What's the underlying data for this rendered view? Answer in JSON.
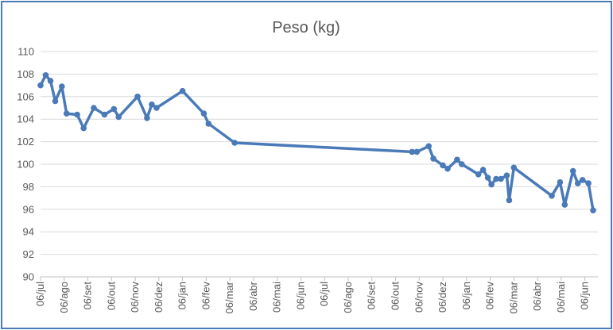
{
  "chart_data": {
    "type": "line",
    "title": "Peso (kg)",
    "xlabel": "",
    "ylabel": "",
    "ylim": [
      90,
      110
    ],
    "y_ticks": [
      90,
      92,
      94,
      96,
      98,
      100,
      102,
      104,
      106,
      108,
      110
    ],
    "x_ticks": [
      "06/jul",
      "06/ago",
      "06/set",
      "06/out",
      "06/nov",
      "06/dez",
      "06/jan",
      "06/fev",
      "06/mar",
      "06/abr",
      "06/mai",
      "06/jun",
      "06/jul",
      "06/ago",
      "06/set",
      "06/out",
      "06/nov",
      "06/dez",
      "06/jan",
      "06/fev",
      "06/mar",
      "06/abr",
      "06/mai",
      "06/jun"
    ],
    "x_range": [
      "06/jul",
      "06/jun + 0.55 month"
    ],
    "grid": "horizontal",
    "legend": "none",
    "series_color": "#4a7ab8",
    "series": [
      {
        "x": [
          0.0,
          0.22,
          0.42,
          0.62,
          0.9,
          1.1,
          1.55,
          1.82,
          2.25,
          2.7,
          3.1,
          3.3,
          4.1,
          4.5,
          4.7,
          4.9,
          6.0,
          6.9,
          7.1,
          8.2,
          15.7,
          15.9,
          16.4,
          16.6,
          17.0,
          17.2,
          17.6,
          17.8,
          18.5,
          18.7,
          18.9,
          19.05,
          19.25,
          19.45,
          19.7,
          19.8,
          20.0,
          21.6,
          21.95,
          22.15,
          22.5,
          22.7,
          22.9,
          23.15,
          23.35
        ],
        "values": [
          107.0,
          107.9,
          107.4,
          105.6,
          106.9,
          104.5,
          104.4,
          103.2,
          105.0,
          104.4,
          104.9,
          104.2,
          106.0,
          104.1,
          105.3,
          105.0,
          106.5,
          104.5,
          103.6,
          101.9,
          101.1,
          101.1,
          101.6,
          100.5,
          99.9,
          99.6,
          100.4,
          100.0,
          99.1,
          99.5,
          98.8,
          98.2,
          98.7,
          98.7,
          99.0,
          96.8,
          99.7,
          97.2,
          98.4,
          96.4,
          99.4,
          98.3,
          98.6,
          98.3,
          95.9
        ]
      }
    ]
  }
}
